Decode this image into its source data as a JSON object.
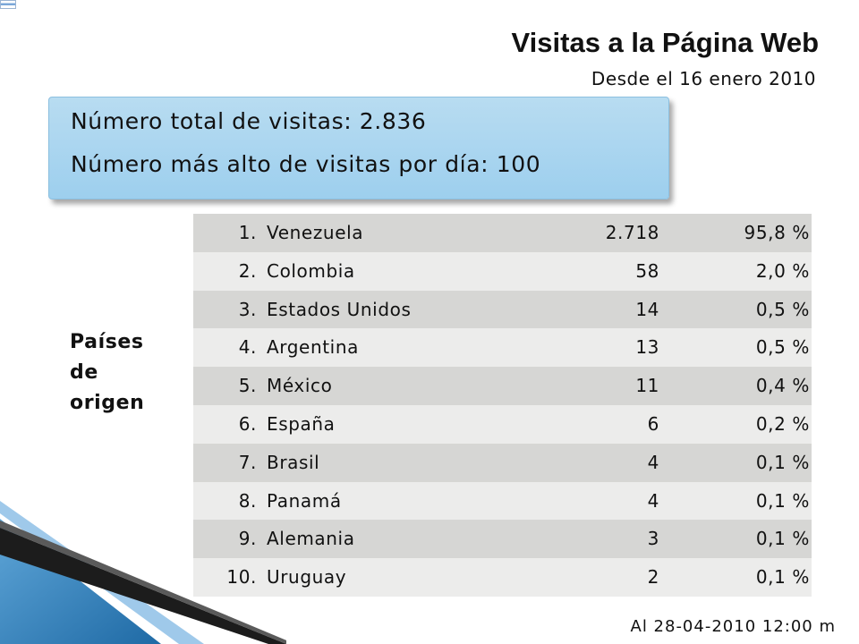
{
  "header": {
    "title": "Visitas a la Página Web",
    "subtitle": "Desde el 16 enero 2010"
  },
  "summary": {
    "total_visits": "Número total de visitas: 2.836",
    "max_per_day": "Número más alto de visitas por día: 100"
  },
  "side_label": {
    "line1": "Países",
    "line2": "de",
    "line3": "origen"
  },
  "table": {
    "rows": [
      {
        "rank": "1.",
        "country": "Venezuela",
        "visits": "2.718",
        "pct": "95,8 %"
      },
      {
        "rank": "2.",
        "country": "Colombia",
        "visits": "58",
        "pct": "2,0 %"
      },
      {
        "rank": "3.",
        "country": "Estados Unidos",
        "visits": "14",
        "pct": "0,5 %"
      },
      {
        "rank": "4.",
        "country": "Argentina",
        "visits": "13",
        "pct": "0,5 %"
      },
      {
        "rank": "5.",
        "country": "México",
        "visits": "11",
        "pct": "0,4 %"
      },
      {
        "rank": "6.",
        "country": "España",
        "visits": "6",
        "pct": "0,2 %"
      },
      {
        "rank": "7.",
        "country": "Brasil",
        "visits": "4",
        "pct": "0,1 %"
      },
      {
        "rank": "8.",
        "country": "Panamá",
        "visits": "4",
        "pct": "0,1 %"
      },
      {
        "rank": "9.",
        "country": "Alemania",
        "visits": "3",
        "pct": "0,1 %"
      },
      {
        "rank": "10.",
        "country": "Uruguay",
        "visits": "2",
        "pct": "0,1 %"
      }
    ]
  },
  "footer": {
    "timestamp": "Al 28-04-2010  12:00 m"
  },
  "colors": {
    "box_bg": "#b8dcf1",
    "row_odd": "#d6d6d4",
    "row_even": "#ececeb",
    "accent_blue": "#2f7fb8"
  }
}
